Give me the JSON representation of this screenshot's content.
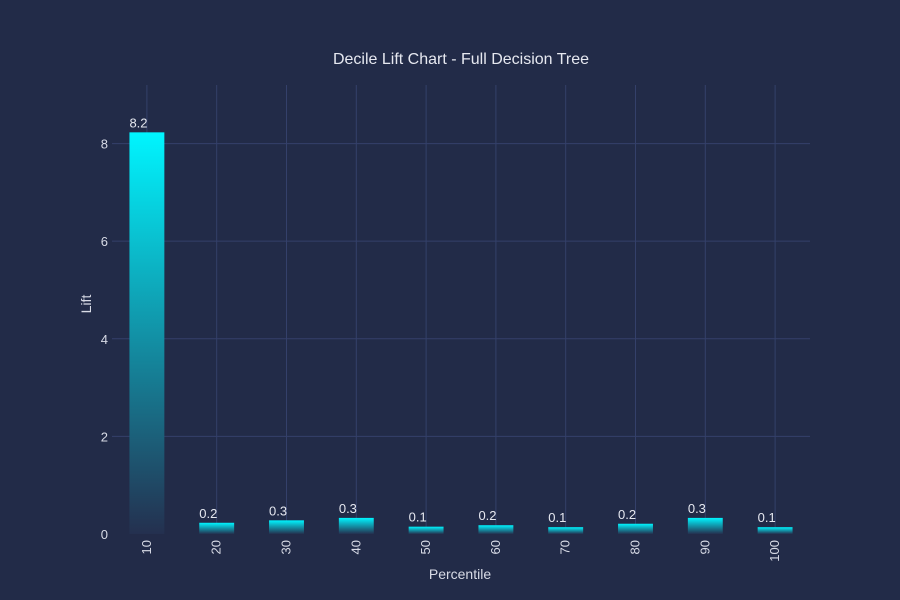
{
  "chart_data": {
    "type": "bar",
    "title": "Decile Lift Chart - Full Decision Tree",
    "xlabel": "Percentile",
    "ylabel": "Lift",
    "categories": [
      "10",
      "20",
      "30",
      "40",
      "50",
      "60",
      "70",
      "80",
      "90",
      "100"
    ],
    "values": [
      8.23,
      0.23,
      0.28,
      0.33,
      0.15,
      0.18,
      0.14,
      0.21,
      0.33,
      0.14
    ],
    "data_labels": [
      "8.2",
      "0.2",
      "0.3",
      "0.3",
      "0.1",
      "0.2",
      "0.1",
      "0.2",
      "0.3",
      "0.1"
    ],
    "ylim": [
      0,
      9.2
    ],
    "yticks": [
      0,
      2,
      4,
      6,
      8
    ],
    "grid": true,
    "colors": {
      "background": "#222b48",
      "bar_top": "#00f5ff",
      "bar_bottom": "#24304f",
      "grid": "#34406a",
      "text": "#d8dbe6"
    }
  }
}
